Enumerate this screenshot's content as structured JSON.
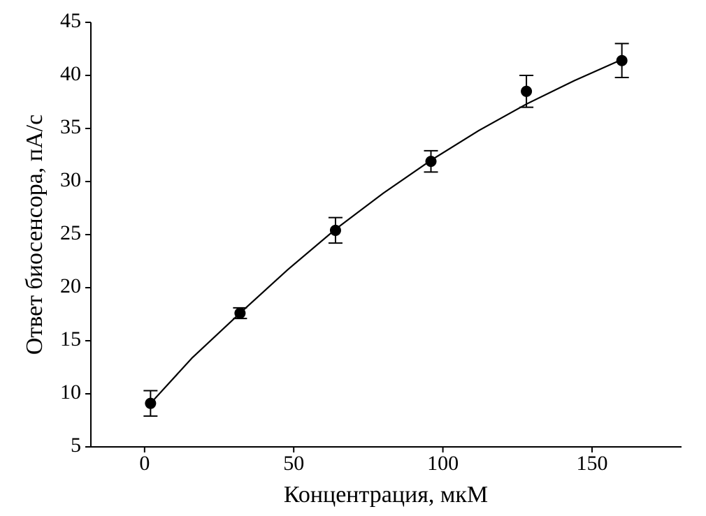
{
  "chart_data": {
    "type": "scatter",
    "x_label": "Концентрация, мкМ",
    "y_label": "Ответ биосенсора, пА/с",
    "xlim": [
      -18,
      180
    ],
    "ylim": [
      5,
      45
    ],
    "xticks": [
      0,
      50,
      100,
      150
    ],
    "yticks": [
      5,
      10,
      15,
      20,
      25,
      30,
      35,
      40,
      45
    ],
    "color": "#000000",
    "series": [
      {
        "type": "scatter",
        "x": [
          2,
          32,
          64,
          96,
          128,
          160
        ],
        "values": [
          9.1,
          17.6,
          25.4,
          31.9,
          38.5,
          41.4
        ],
        "errors": [
          1.2,
          0.5,
          1.2,
          1.0,
          1.5,
          1.6
        ]
      },
      {
        "type": "line",
        "x": [
          2,
          16,
          32,
          48,
          64,
          80,
          96,
          112,
          128,
          144,
          160
        ],
        "values": [
          9.1,
          13.4,
          17.6,
          21.7,
          25.5,
          28.9,
          32.0,
          34.8,
          37.3,
          39.5,
          41.5
        ]
      }
    ]
  }
}
